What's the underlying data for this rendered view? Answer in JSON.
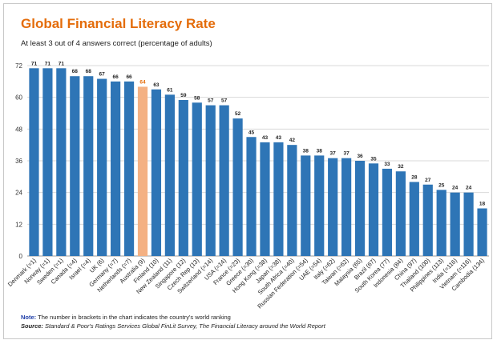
{
  "header": {
    "title": "Global Financial Literacy Rate",
    "subtitle": "At least 3 out of 4 answers correct (percentage of adults)"
  },
  "footer": {
    "note_label": "Note:",
    "note_text": " The number in brackets in the chart indicates the country's world ranking",
    "source_label": "Source:",
    "source_text": " Standard & Poor's Ratings Services Global FinLit Survey, The Financial Literacy around the World Report"
  },
  "colors": {
    "bar": "#2e75b6",
    "highlight_bar": "#f4b183",
    "highlight_label": "#e46c0a",
    "title": "#e46c0a",
    "grid": "#d9d9d9"
  },
  "chart_data": {
    "type": "bar",
    "title": "Global Financial Literacy Rate",
    "subtitle": "At least 3 out of 4 answers correct (percentage of adults)",
    "xlabel": "",
    "ylabel": "",
    "ylim": [
      0,
      72
    ],
    "yticks": [
      0,
      12,
      24,
      36,
      48,
      60,
      72
    ],
    "grid": true,
    "highlight": "Australia (9)",
    "categories": [
      "Denmark (=1)",
      "Norway (=1)",
      "Sweden (=1)",
      "Canada (=4)",
      "Israel (=4)",
      "UK (6)",
      "Germany (=7)",
      "Netherlands (=7)",
      "Australia (9)",
      "Finland (10)",
      "New Zealand (11)",
      "Singapore (12)",
      "Czech Rep (13)",
      "Switzerland (=14)",
      "USA (=14)",
      "France (=23)",
      "Greece (=30)",
      "Hong Kong (=38)",
      "Japan (=38)",
      "South Africa (=40)",
      "Russian Federation (=54)",
      "UAE (=54)",
      "Italy (=62)",
      "Taiwan (=62)",
      "Malaysia (65)",
      "Brazil (67)",
      "South Korea (77)",
      "Indonesia (84)",
      "China (97)",
      "Thailand (100)",
      "Philippines (113)",
      "India (=116)",
      "Vietnam (=116)",
      "Cambodia (134)"
    ],
    "values": [
      71,
      71,
      71,
      68,
      68,
      67,
      66,
      66,
      64,
      63,
      61,
      59,
      58,
      57,
      57,
      52,
      45,
      43,
      43,
      42,
      38,
      38,
      37,
      37,
      36,
      35,
      33,
      32,
      28,
      27,
      25,
      24,
      24,
      18
    ]
  }
}
